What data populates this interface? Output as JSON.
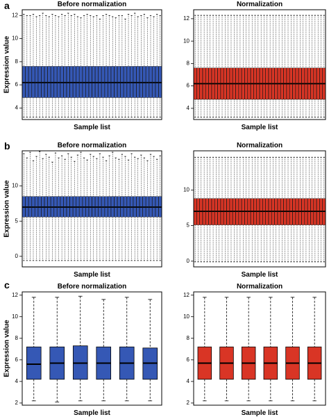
{
  "panel_labels": [
    "a",
    "b",
    "c"
  ],
  "chart_data": [
    {
      "id": "a-before",
      "type": "boxplot",
      "title": "Before normalization",
      "xlabel": "Sample list",
      "ylabel": "Expression value",
      "ylim": [
        3,
        12.5
      ],
      "yticks": [
        4,
        6,
        8,
        10,
        12
      ],
      "fill": "#3558b5",
      "n_samples": 44,
      "outliers": "none",
      "median": 6.2,
      "q1": 4.9,
      "q3": 7.6,
      "whisker_low": 3.2,
      "whisker_high": [
        12.1,
        12.0,
        12.0,
        12.1,
        11.9,
        12.0,
        12.2,
        12.0,
        11.9,
        12.1,
        12.0,
        11.9,
        12.1,
        12.0,
        12.2,
        12.0,
        12.1,
        11.9,
        11.8,
        12.0,
        12.1,
        12.0,
        11.9,
        12.0,
        11.7,
        12.0,
        12.1,
        12.0,
        11.9,
        11.8,
        12.0,
        12.0,
        11.7,
        12.1,
        12.0,
        12.2,
        11.9,
        12.0,
        12.1,
        11.8,
        12.0,
        11.9,
        12.1,
        12.0
      ]
    },
    {
      "id": "a-after",
      "type": "boxplot",
      "title": "Normalization",
      "xlabel": "Sample list",
      "ylabel": "",
      "ylim": [
        3,
        12.8
      ],
      "yticks": [
        4,
        6,
        8,
        10,
        12
      ],
      "fill": "#d93525",
      "n_samples": 44,
      "outliers": "none",
      "median": 6.2,
      "q1": 4.8,
      "q3": 7.6,
      "whisker_low": 3.2,
      "whisker_high": 12.3
    },
    {
      "id": "b-before",
      "type": "boxplot",
      "title": "Before normalization",
      "xlabel": "Sample list",
      "ylabel": "Expression value",
      "ylim": [
        -1.5,
        15
      ],
      "yticks": [
        0,
        5,
        10
      ],
      "fill": "#3558b5",
      "n_samples": 44,
      "outliers": "none",
      "median": 7.0,
      "q1": 5.6,
      "q3": 8.5,
      "whisker_low": -0.6,
      "whisker_high": [
        14.6,
        14.0,
        14.8,
        13.6,
        14.2,
        14.9,
        13.9,
        14.5,
        14.1,
        13.4,
        14.7,
        14.0,
        14.3,
        13.8,
        14.6,
        14.1,
        13.5,
        14.4,
        14.8,
        14.0,
        13.7,
        14.5,
        14.2,
        13.9,
        14.6,
        14.1,
        13.6,
        14.3,
        14.8,
        14.0,
        13.8,
        14.5,
        14.2,
        13.7,
        14.6,
        14.1,
        13.9,
        14.4,
        14.0,
        13.6,
        14.5,
        14.2,
        13.8,
        14.3
      ]
    },
    {
      "id": "b-after",
      "type": "boxplot",
      "title": "Normalization",
      "xlabel": "Sample list",
      "ylabel": "",
      "ylim": [
        -0.8,
        15.5
      ],
      "yticks": [
        0,
        5,
        10
      ],
      "fill": "#d93525",
      "n_samples": 44,
      "outliers": "none",
      "median": 7.0,
      "q1": 5.1,
      "q3": 8.8,
      "whisker_low": -0.1,
      "whisker_high": 14.6
    },
    {
      "id": "c-before",
      "type": "boxplot",
      "title": "Before normalization",
      "xlabel": "Sample list",
      "ylabel": "Expression value",
      "ylim": [
        1.8,
        12.3
      ],
      "yticks": [
        2,
        4,
        6,
        8,
        10,
        12
      ],
      "fill": "#3558b5",
      "n_samples": 6,
      "outliers": "none",
      "median": [
        5.6,
        5.7,
        5.7,
        5.7,
        5.7,
        5.7
      ],
      "q1": [
        4.2,
        4.2,
        4.2,
        4.2,
        4.2,
        4.2
      ],
      "q3": [
        7.2,
        7.2,
        7.3,
        7.2,
        7.2,
        7.1
      ],
      "whisker_low": [
        2.2,
        2.1,
        2.2,
        2.2,
        2.2,
        2.2
      ],
      "whisker_high": [
        11.8,
        11.8,
        11.9,
        11.6,
        11.8,
        11.6
      ]
    },
    {
      "id": "c-after",
      "type": "boxplot",
      "title": "Normalization",
      "xlabel": "Sample list",
      "ylabel": "",
      "ylim": [
        1.8,
        12.3
      ],
      "yticks": [
        2,
        4,
        6,
        8,
        10,
        12
      ],
      "fill": "#d93525",
      "n_samples": 6,
      "outliers": "none",
      "median": 5.7,
      "q1": 4.2,
      "q3": 7.2,
      "whisker_low": 2.2,
      "whisker_high": 11.8
    }
  ]
}
